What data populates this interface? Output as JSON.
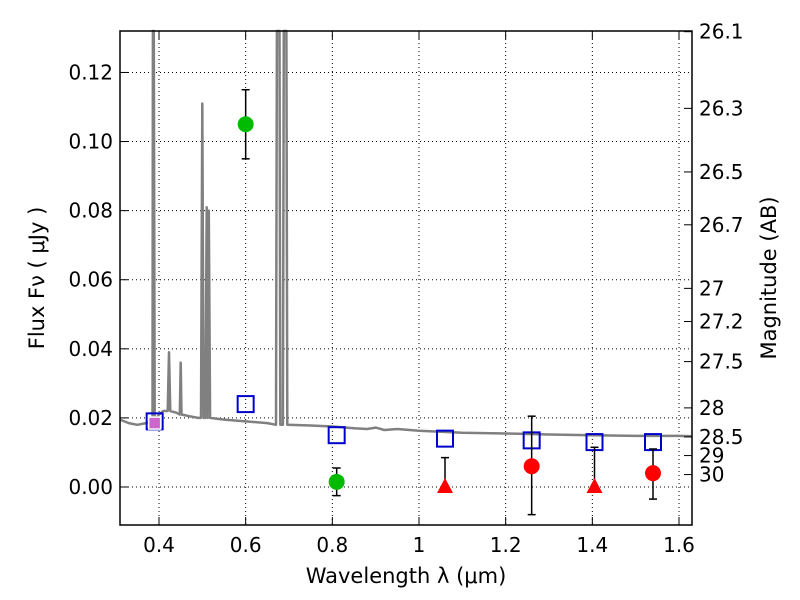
{
  "chart_data": {
    "type": "scatter",
    "title": "",
    "xlabel": "Wavelength  λ (μm)",
    "ylabel": "Flux  Fν  ( μJy )",
    "ylabel_right": "Magnitude (AB)",
    "xlim": [
      0.31,
      1.63
    ],
    "ylim": [
      -0.011,
      0.132
    ],
    "grid": true,
    "x_ticks": [
      {
        "value": 0.4,
        "label": "0.4"
      },
      {
        "value": 0.6,
        "label": "0.6"
      },
      {
        "value": 0.8,
        "label": "0.8"
      },
      {
        "value": 1.0,
        "label": "1"
      },
      {
        "value": 1.2,
        "label": "1.2"
      },
      {
        "value": 1.4,
        "label": "1.4"
      },
      {
        "value": 1.6,
        "label": "1.6"
      }
    ],
    "y_ticks": [
      {
        "value": 0.0,
        "label": "0.00"
      },
      {
        "value": 0.02,
        "label": "0.02"
      },
      {
        "value": 0.04,
        "label": "0.04"
      },
      {
        "value": 0.06,
        "label": "0.06"
      },
      {
        "value": 0.08,
        "label": "0.08"
      },
      {
        "value": 0.1,
        "label": "0.10"
      },
      {
        "value": 0.12,
        "label": "0.12"
      }
    ],
    "right_ticks": [
      {
        "label": "26.1",
        "flux": 0.1318
      },
      {
        "label": "26.3",
        "flux": 0.1096
      },
      {
        "label": "26.5",
        "flux": 0.0912
      },
      {
        "label": "26.7",
        "flux": 0.0759
      },
      {
        "label": "27",
        "flux": 0.0575
      },
      {
        "label": "27.2",
        "flux": 0.0479
      },
      {
        "label": "27.5",
        "flux": 0.0363
      },
      {
        "label": "28",
        "flux": 0.0229
      },
      {
        "label": "28.5",
        "flux": 0.0145
      },
      {
        "label": "29",
        "flux": 0.0091
      },
      {
        "label": "30",
        "flux": 0.0036
      }
    ],
    "series": [
      {
        "name": "model-spectrum",
        "kind": "line",
        "color": "#808080",
        "points": [
          [
            0.31,
            0.0195
          ],
          [
            0.33,
            0.0185
          ],
          [
            0.35,
            0.018
          ],
          [
            0.37,
            0.0185
          ],
          [
            0.385,
            0.019
          ],
          [
            0.386,
            0.132
          ],
          [
            0.388,
            0.132
          ],
          [
            0.39,
            0.019
          ],
          [
            0.4,
            0.021
          ],
          [
            0.41,
            0.022
          ],
          [
            0.42,
            0.022
          ],
          [
            0.423,
            0.039
          ],
          [
            0.426,
            0.022
          ],
          [
            0.44,
            0.0215
          ],
          [
            0.448,
            0.021
          ],
          [
            0.45,
            0.036
          ],
          [
            0.452,
            0.021
          ],
          [
            0.47,
            0.0205
          ],
          [
            0.49,
            0.02
          ],
          [
            0.497,
            0.02
          ],
          [
            0.5,
            0.111
          ],
          [
            0.503,
            0.02
          ],
          [
            0.507,
            0.02
          ],
          [
            0.51,
            0.081
          ],
          [
            0.512,
            0.02
          ],
          [
            0.515,
            0.08
          ],
          [
            0.518,
            0.02
          ],
          [
            0.55,
            0.0195
          ],
          [
            0.6,
            0.019
          ],
          [
            0.65,
            0.0185
          ],
          [
            0.67,
            0.018
          ],
          [
            0.672,
            0.132
          ],
          [
            0.678,
            0.132
          ],
          [
            0.68,
            0.018
          ],
          [
            0.686,
            0.018
          ],
          [
            0.688,
            0.132
          ],
          [
            0.694,
            0.132
          ],
          [
            0.696,
            0.018
          ],
          [
            0.75,
            0.0178
          ],
          [
            0.8,
            0.0175
          ],
          [
            0.85,
            0.017
          ],
          [
            0.88,
            0.0168
          ],
          [
            0.9,
            0.0172
          ],
          [
            0.92,
            0.0165
          ],
          [
            0.95,
            0.0168
          ],
          [
            1.0,
            0.0163
          ],
          [
            1.1,
            0.0157
          ],
          [
            1.2,
            0.0155
          ],
          [
            1.3,
            0.0152
          ],
          [
            1.4,
            0.015
          ],
          [
            1.5,
            0.0148
          ],
          [
            1.6,
            0.0148
          ],
          [
            1.63,
            0.0147
          ]
        ]
      },
      {
        "name": "model-photometry",
        "kind": "open-square",
        "color": "#0000cc",
        "points": [
          [
            0.39,
            0.019
          ],
          [
            0.6,
            0.024
          ],
          [
            0.81,
            0.015
          ],
          [
            1.06,
            0.014
          ],
          [
            1.26,
            0.0135
          ],
          [
            1.405,
            0.013
          ],
          [
            1.54,
            0.013
          ]
        ]
      },
      {
        "name": "green-detections",
        "kind": "circle",
        "color": "#00bb00",
        "points": [
          {
            "x": 0.6,
            "y": 0.105,
            "yerr_low": 0.095,
            "yerr_high": 0.115
          },
          {
            "x": 0.81,
            "y": 0.0015,
            "yerr_low": -0.0025,
            "yerr_high": 0.0055
          }
        ]
      },
      {
        "name": "red-detections",
        "kind": "circle",
        "color": "#ff0000",
        "points": [
          {
            "x": 1.26,
            "y": 0.006,
            "yerr_low": -0.008,
            "yerr_high": 0.0205
          },
          {
            "x": 1.54,
            "y": 0.004,
            "yerr_low": -0.0035,
            "yerr_high": 0.011
          }
        ]
      },
      {
        "name": "red-upper-limits",
        "kind": "triangle",
        "color": "#ff0000",
        "points": [
          {
            "x": 1.06,
            "y": 0.0,
            "yerr_high": 0.0085
          },
          {
            "x": 1.405,
            "y": 0.0,
            "yerr_high": 0.0115
          }
        ]
      },
      {
        "name": "purple-point",
        "kind": "square",
        "color": "#cc66cc",
        "points": [
          [
            0.39,
            0.0185
          ]
        ]
      }
    ]
  }
}
